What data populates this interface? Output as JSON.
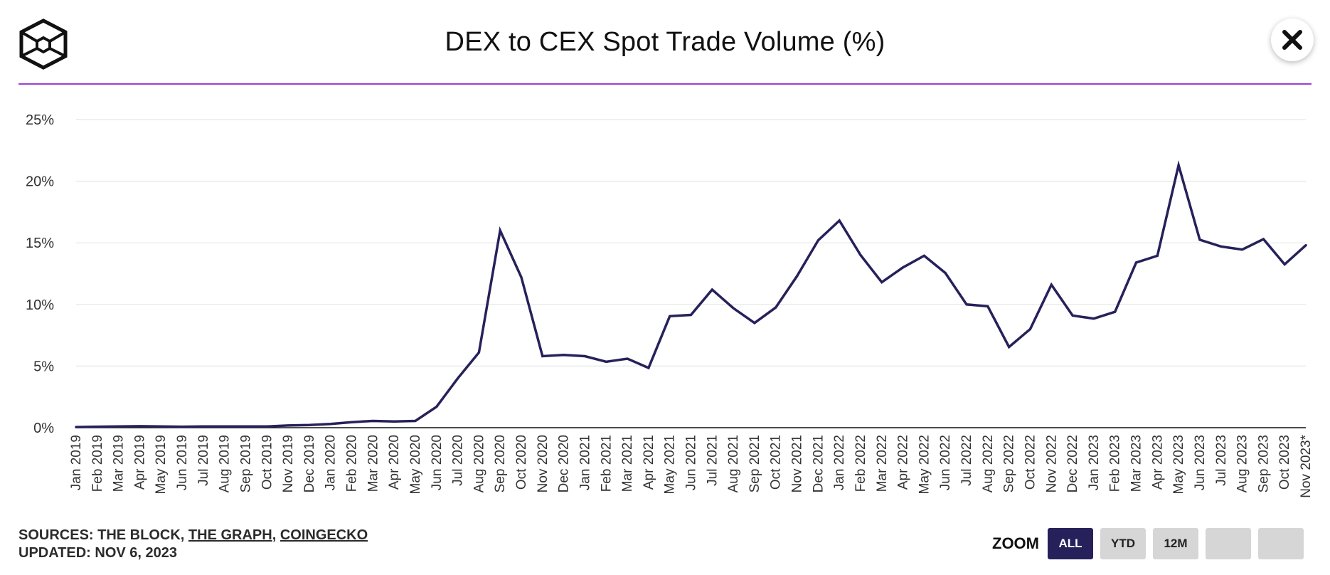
{
  "header": {
    "title": "DEX to CEX Spot Trade Volume (%)"
  },
  "footer": {
    "sources_prefix": "SOURCES: ",
    "sources": [
      "THE BLOCK",
      "THE GRAPH",
      "COINGECKO"
    ],
    "separator": ", ",
    "updated": "UPDATED: NOV 6, 2023"
  },
  "zoom": {
    "label": "ZOOM",
    "buttons": [
      "ALL",
      "YTD",
      "12M",
      "",
      ""
    ],
    "active": "ALL"
  },
  "colors": {
    "line": "#26215a",
    "accent": "#9b3fd6",
    "grid": "#e6e6e6",
    "axis": "#111111"
  },
  "chart_data": {
    "type": "line",
    "title": "DEX to CEX Spot Trade Volume (%)",
    "xlabel": "",
    "ylabel": "",
    "ylim": [
      0,
      25
    ],
    "yticks": [
      0,
      5,
      10,
      15,
      20,
      25
    ],
    "ytick_labels": [
      "0%",
      "5%",
      "10%",
      "15%",
      "20%",
      "25%"
    ],
    "grid": true,
    "legend": "none",
    "categories": [
      "Jan 2019",
      "Feb 2019",
      "Mar 2019",
      "Apr 2019",
      "May 2019",
      "Jun 2019",
      "Jul 2019",
      "Aug 2019",
      "Sep 2019",
      "Oct 2019",
      "Nov 2019",
      "Dec 2019",
      "Jan 2020",
      "Feb 2020",
      "Mar 2020",
      "Apr 2020",
      "May 2020",
      "Jun 2020",
      "Jul 2020",
      "Aug 2020",
      "Sep 2020",
      "Oct 2020",
      "Nov 2020",
      "Dec 2020",
      "Jan 2021",
      "Feb 2021",
      "Mar 2021",
      "Apr 2021",
      "May 2021",
      "Jun 2021",
      "Jul 2021",
      "Aug 2021",
      "Sep 2021",
      "Oct 2021",
      "Nov 2021",
      "Dec 2021",
      "Jan 2022",
      "Feb 2022",
      "Mar 2022",
      "Apr 2022",
      "May 2022",
      "Jun 2022",
      "Jul 2022",
      "Aug 2022",
      "Sep 2022",
      "Oct 2022",
      "Nov 2022",
      "Dec 2022",
      "Jan 2023",
      "Feb 2023",
      "Mar 2023",
      "Apr 2023",
      "May 2023",
      "Jun 2023",
      "Jul 2023",
      "Aug 2023",
      "Sep 2023",
      "Oct 2023",
      "Nov 2023*"
    ],
    "series": [
      {
        "name": "DEX to CEX Spot Trade Volume (%)",
        "values": [
          0.05,
          0.08,
          0.1,
          0.12,
          0.1,
          0.08,
          0.1,
          0.1,
          0.1,
          0.1,
          0.18,
          0.22,
          0.3,
          0.45,
          0.55,
          0.5,
          0.55,
          1.7,
          4.0,
          6.1,
          16.0,
          12.2,
          5.8,
          5.9,
          5.8,
          5.35,
          5.6,
          4.85,
          9.05,
          9.15,
          11.2,
          9.7,
          8.5,
          9.75,
          12.3,
          15.2,
          16.8,
          14.0,
          11.8,
          13.0,
          13.95,
          12.55,
          10.0,
          9.85,
          6.55,
          8.0,
          11.6,
          9.1,
          8.85,
          9.4,
          13.4,
          13.95,
          21.3,
          15.25,
          14.7,
          14.45,
          15.3,
          13.25,
          14.8
        ]
      }
    ]
  }
}
